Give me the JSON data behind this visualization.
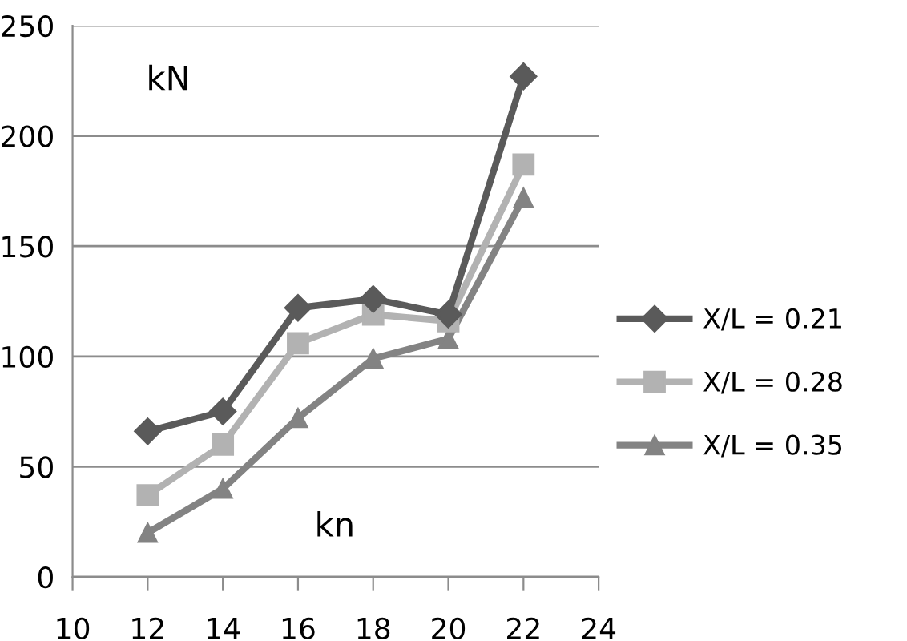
{
  "chart_data": {
    "type": "line",
    "x": [
      12,
      14,
      16,
      18,
      20,
      22
    ],
    "series": [
      {
        "name": "X/L = 0.21",
        "color": "#5a5a5a",
        "marker": "diamond",
        "values": [
          66,
          75,
          122,
          126,
          119,
          227
        ]
      },
      {
        "name": "X/L = 0.28",
        "color": "#b2b2b2",
        "marker": "square",
        "values": [
          37,
          60,
          106,
          119,
          116,
          187
        ]
      },
      {
        "name": "X/L = 0.35",
        "color": "#838383",
        "marker": "triangle",
        "values": [
          20,
          40,
          72,
          99,
          108,
          172
        ]
      }
    ],
    "annotations": [
      "kN",
      "kn"
    ],
    "xlim": [
      10,
      24
    ],
    "xticks": [
      10,
      12,
      14,
      16,
      18,
      20,
      22,
      24
    ],
    "ylim": [
      0,
      250
    ],
    "yticks": [
      0,
      50,
      100,
      150,
      200,
      250
    ],
    "grid": "y",
    "legend": "right",
    "line_style": "solid"
  }
}
